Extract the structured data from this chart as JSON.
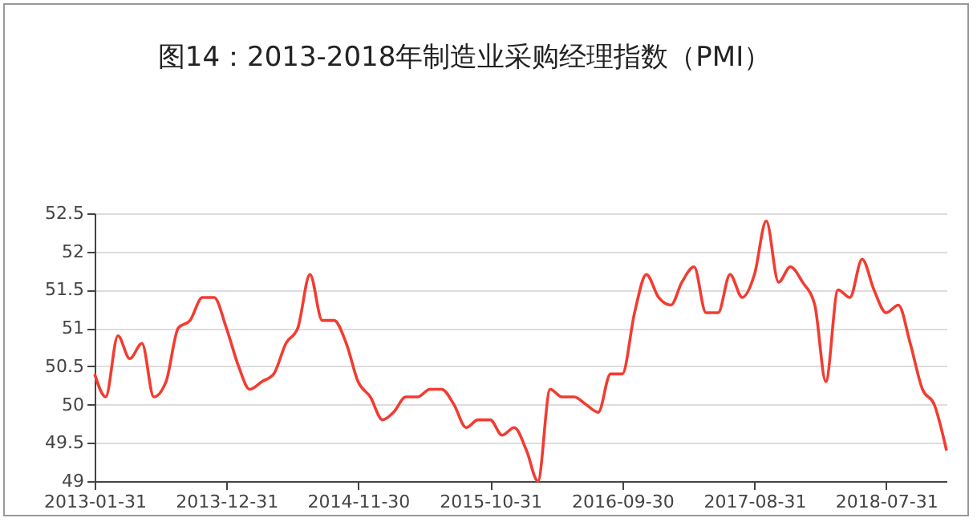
{
  "chart_data": {
    "type": "line",
    "title": "图14：2013-2018年制造业采购经理指数（PMI）",
    "x": [
      "2013-01-31",
      "2013-02-28",
      "2013-03-31",
      "2013-04-30",
      "2013-05-31",
      "2013-06-30",
      "2013-07-31",
      "2013-08-31",
      "2013-09-30",
      "2013-10-31",
      "2013-11-30",
      "2013-12-31",
      "2014-01-31",
      "2014-02-28",
      "2014-03-31",
      "2014-04-30",
      "2014-05-31",
      "2014-06-30",
      "2014-07-31",
      "2014-08-31",
      "2014-09-30",
      "2014-10-31",
      "2014-11-30",
      "2014-12-31",
      "2015-01-31",
      "2015-02-28",
      "2015-03-31",
      "2015-04-30",
      "2015-05-31",
      "2015-06-30",
      "2015-07-31",
      "2015-08-31",
      "2015-09-30",
      "2015-10-31",
      "2015-11-30",
      "2015-12-31",
      "2016-01-31",
      "2016-02-29",
      "2016-03-31",
      "2016-04-30",
      "2016-05-31",
      "2016-06-30",
      "2016-07-31",
      "2016-08-31",
      "2016-09-30",
      "2016-10-31",
      "2016-11-30",
      "2016-12-31",
      "2017-01-31",
      "2017-02-28",
      "2017-03-31",
      "2017-04-30",
      "2017-05-31",
      "2017-06-30",
      "2017-07-31",
      "2017-08-31",
      "2017-09-30",
      "2017-10-31",
      "2017-11-30",
      "2017-12-31",
      "2018-01-31",
      "2018-02-28",
      "2018-03-31",
      "2018-04-30",
      "2018-05-31",
      "2018-06-30",
      "2018-07-31",
      "2018-08-31",
      "2018-09-30",
      "2018-10-31",
      "2018-11-30",
      "2018-12-31"
    ],
    "series": [
      {
        "color": "#f23c32",
        "values": [
          50.4,
          50.1,
          50.9,
          50.6,
          50.8,
          50.1,
          50.3,
          51.0,
          51.1,
          51.4,
          51.4,
          51.0,
          50.5,
          50.2,
          50.3,
          50.4,
          50.8,
          51.0,
          51.7,
          51.1,
          51.1,
          50.8,
          50.3,
          50.1,
          49.8,
          49.9,
          50.1,
          50.1,
          50.2,
          50.2,
          50.0,
          49.7,
          49.8,
          49.8,
          49.6,
          49.7,
          49.4,
          49.0,
          50.2,
          50.1,
          50.1,
          50.0,
          49.9,
          50.4,
          50.4,
          51.2,
          51.7,
          51.4,
          51.3,
          51.6,
          51.8,
          51.2,
          51.2,
          51.7,
          51.4,
          51.7,
          52.4,
          51.6,
          51.8,
          51.6,
          51.3,
          50.3,
          51.5,
          51.4,
          51.9,
          51.5,
          51.2,
          51.3,
          50.8,
          50.2,
          50.0,
          49.4
        ]
      }
    ],
    "xlim": [
      "2013-01-31",
      "2018-12-31"
    ],
    "xticks": [
      "2013-01-31",
      "2013-12-31",
      "2014-11-30",
      "2015-10-31",
      "2016-09-30",
      "2017-08-31",
      "2018-07-31"
    ],
    "ylim": [
      49,
      52.5
    ],
    "yticks": [
      49,
      49.5,
      50,
      50.5,
      51,
      51.5,
      52,
      52.5
    ],
    "grid": "y",
    "legend": false
  }
}
